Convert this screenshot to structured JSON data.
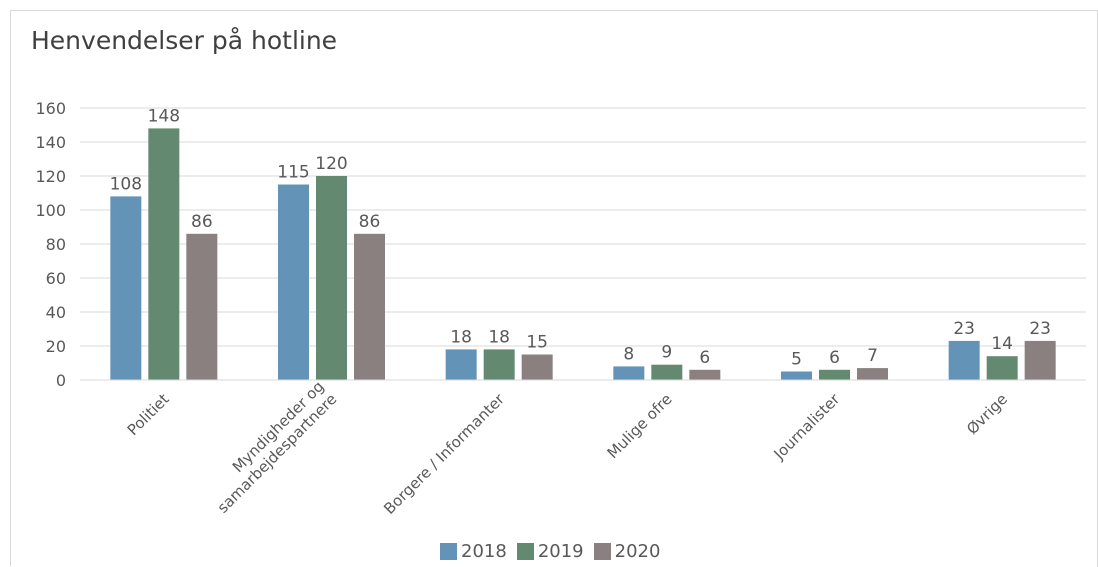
{
  "chart_data": {
    "type": "bar",
    "title": "Henvendelser på hotline",
    "categories": [
      [
        "Politiet"
      ],
      [
        "Myndigheder og",
        "samarbejdespartnere"
      ],
      [
        "Borgere / Informanter"
      ],
      [
        "Mulige ofre"
      ],
      [
        "Journalister"
      ],
      [
        "Øvrige"
      ]
    ],
    "series": [
      {
        "name": "2018",
        "color": "#6394b8",
        "values": [
          108,
          115,
          18,
          8,
          5,
          23
        ]
      },
      {
        "name": "2019",
        "color": "#638a70",
        "values": [
          148,
          120,
          18,
          9,
          6,
          14
        ]
      },
      {
        "name": "2020",
        "color": "#8a8080",
        "values": [
          86,
          86,
          15,
          6,
          7,
          23
        ]
      }
    ],
    "ylim": [
      0,
      160
    ],
    "yticks": [
      0,
      20,
      40,
      60,
      80,
      100,
      120,
      140,
      160
    ],
    "grid": true,
    "legend_position": "bottom",
    "data_labels": true
  }
}
